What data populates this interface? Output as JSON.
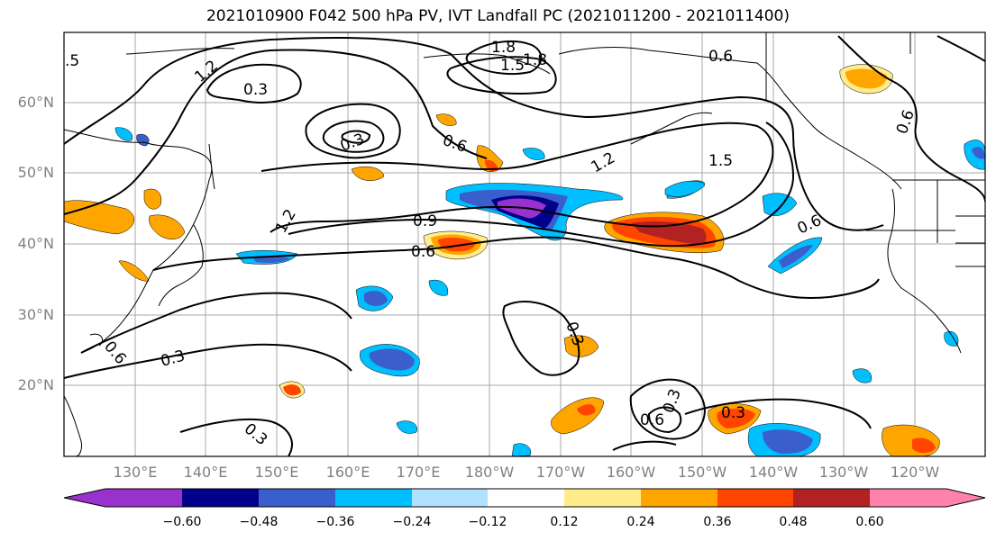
{
  "title": "2021010900 F042 500 hPa PV, IVT Landfall PC (2021011200 - 2021011400)",
  "lat_labels": [
    "60°N",
    "50°N",
    "40°N",
    "30°N",
    "20°N"
  ],
  "lon_labels": [
    "130°E",
    "140°E",
    "150°E",
    "160°E",
    "170°E",
    "180°W",
    "170°W",
    "160°W",
    "150°W",
    "140°W",
    "130°W",
    "120°W"
  ],
  "contour_labels": [
    ".5",
    "1.2",
    "0.3",
    "1.8",
    "1.5",
    "1.8",
    "0.6",
    "1.2",
    "1.5",
    "0.9",
    "0.6",
    "0.6",
    "0.3",
    "1.2",
    "0.6",
    "0.3",
    "0.3",
    "0.6",
    "0.3",
    "0.3",
    "0.6",
    "0.3",
    "0.6"
  ],
  "colorbar": {
    "colors": [
      "#9932cc",
      "#00008b",
      "#3a5fcd",
      "#00bfff",
      "#b0e2ff",
      "#ffffff",
      "#ffec8b",
      "#ffa500",
      "#ff4500",
      "#b22222",
      "#ff82ab"
    ],
    "tick_labels": [
      "−0.60",
      "−0.48",
      "−0.36",
      "−0.24",
      "−0.12",
      "0.12",
      "0.24",
      "0.36",
      "0.48",
      "0.60"
    ]
  }
}
